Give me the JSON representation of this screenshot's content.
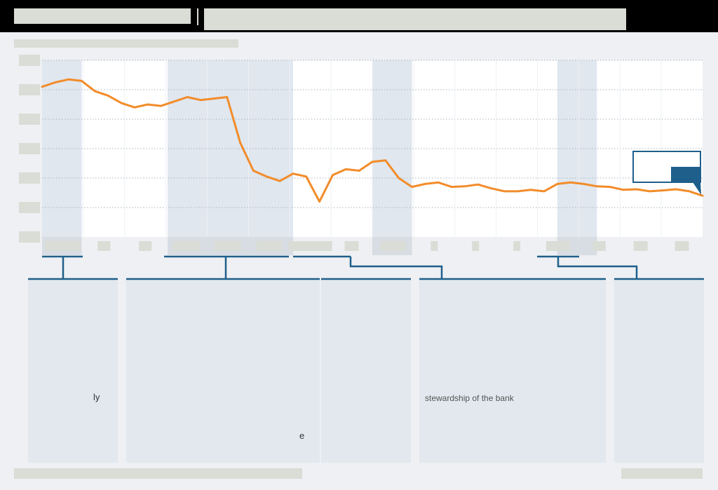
{
  "header": {
    "title": "",
    "subtitle": ""
  },
  "chart_data": {
    "type": "line",
    "title": "",
    "xlabel": "",
    "ylabel": "",
    "ylim": [
      0,
      6
    ],
    "x": [
      0.0,
      0.02,
      0.04,
      0.06,
      0.08,
      0.1,
      0.12,
      0.14,
      0.16,
      0.18,
      0.2,
      0.22,
      0.24,
      0.26,
      0.28,
      0.3,
      0.32,
      0.34,
      0.36,
      0.38,
      0.4,
      0.42,
      0.44,
      0.46,
      0.48,
      0.5,
      0.52,
      0.54,
      0.56,
      0.58,
      0.6,
      0.62,
      0.64,
      0.66,
      0.68,
      0.7,
      0.72,
      0.74,
      0.76,
      0.78,
      0.8,
      0.82,
      0.84,
      0.86,
      0.88,
      0.9,
      0.92,
      0.94,
      0.96,
      0.98,
      1.0
    ],
    "series": [
      {
        "name": "",
        "values": [
          5.1,
          5.25,
          5.35,
          5.3,
          4.95,
          4.8,
          4.55,
          4.4,
          4.5,
          4.45,
          4.6,
          4.75,
          4.65,
          4.7,
          4.75,
          3.2,
          2.25,
          2.05,
          1.9,
          2.15,
          2.05,
          1.2,
          2.1,
          2.3,
          2.25,
          2.55,
          2.6,
          2.0,
          1.7,
          1.8,
          1.85,
          1.7,
          1.72,
          1.78,
          1.65,
          1.55,
          1.55,
          1.6,
          1.55,
          1.8,
          1.85,
          1.8,
          1.72,
          1.7,
          1.6,
          1.62,
          1.55,
          1.58,
          1.62,
          1.55,
          1.4
        ]
      }
    ],
    "shaded_periods": [
      [
        0.0,
        0.06
      ],
      [
        0.19,
        0.38
      ],
      [
        0.5,
        0.56
      ],
      [
        0.78,
        0.84
      ]
    ],
    "grid": true,
    "legend": "none"
  },
  "colors": {
    "line": "#f28c2a",
    "accent": "#1f5f8b",
    "shade": "#e0e7ef",
    "panel": "#e2e8ee"
  },
  "panels": [
    {
      "text_fragment": "ly"
    },
    {
      "text_fragment": "e"
    },
    {
      "text_fragment": ""
    },
    {
      "text_fragment": "stewardship of the bank"
    },
    {
      "text_fragment": ""
    }
  ],
  "footer": {
    "source": "",
    "credit": ""
  }
}
